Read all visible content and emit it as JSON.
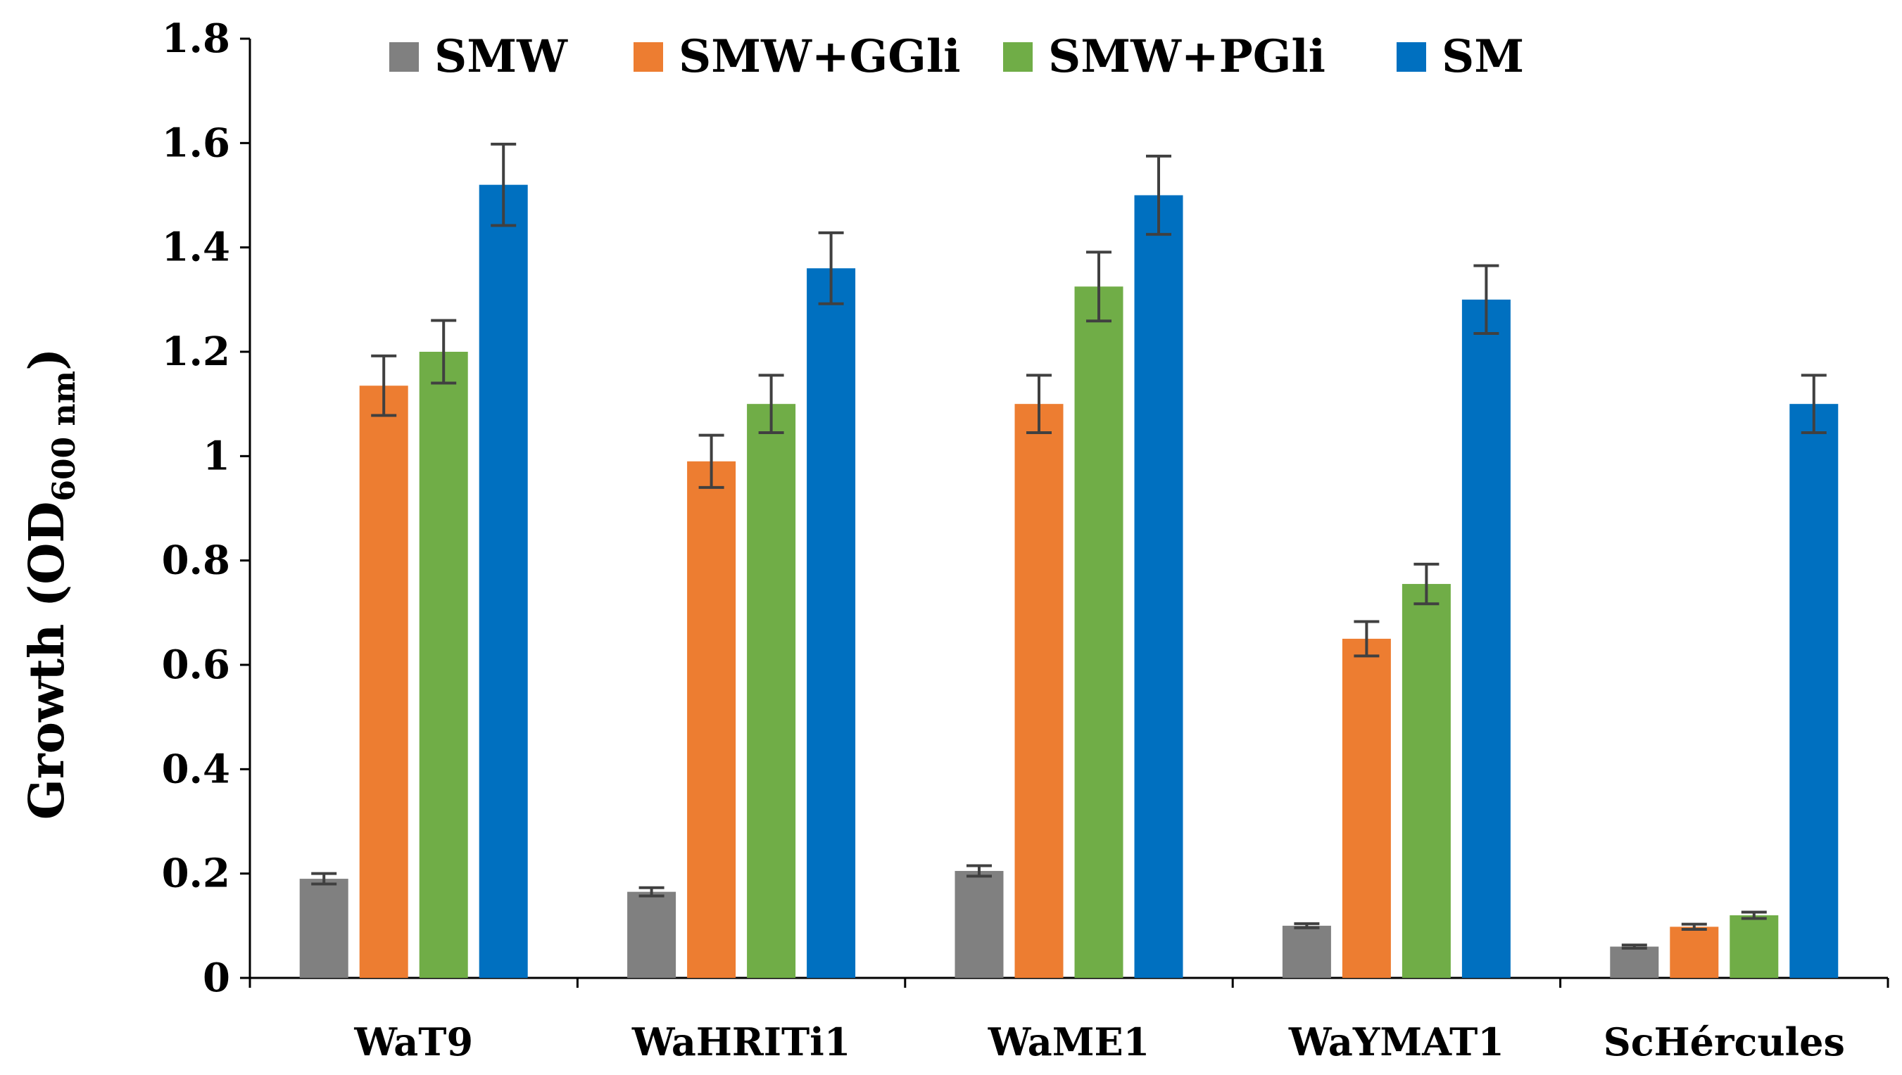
{
  "chart_data": {
    "type": "bar",
    "title": "",
    "xlabel": "",
    "ylabel": {
      "main": "Growth (OD",
      "subscript": "600 nm",
      "close": ")"
    },
    "ylim": [
      0,
      1.8
    ],
    "yticks": [
      0,
      0.2,
      0.4,
      0.6,
      0.8,
      1,
      1.2,
      1.4,
      1.6,
      1.8
    ],
    "ytick_labels": [
      "0",
      "0.2",
      "0.4",
      "0.6",
      "0.8",
      "1",
      "1.2",
      "1.4",
      "1.6",
      "1.8"
    ],
    "grid": false,
    "legend_position": "top",
    "categories": [
      "WaT9",
      "WaHRITi1",
      "WaME1",
      "WaYMAT1",
      "ScHércules"
    ],
    "series": [
      {
        "name": "SMW",
        "color": "#808080",
        "values": [
          0.19,
          0.165,
          0.205,
          0.1,
          0.06
        ],
        "errors": [
          0.01,
          0.008,
          0.01,
          0.004,
          0.003
        ]
      },
      {
        "name": "SMW+GGli",
        "color": "#ED7D31",
        "values": [
          1.135,
          0.99,
          1.1,
          0.65,
          0.098
        ],
        "errors": [
          0.057,
          0.05,
          0.055,
          0.033,
          0.005
        ]
      },
      {
        "name": "SMW+PGli",
        "color": "#70AD47",
        "values": [
          1.2,
          1.1,
          1.325,
          0.755,
          0.12
        ],
        "errors": [
          0.06,
          0.055,
          0.066,
          0.038,
          0.006
        ]
      },
      {
        "name": "SM",
        "color": "#0070C0",
        "values": [
          1.52,
          1.36,
          1.5,
          1.3,
          1.1
        ],
        "errors": [
          0.078,
          0.068,
          0.075,
          0.065,
          0.055
        ]
      }
    ],
    "error_bar_color": "#404040",
    "axis_color": "#000000"
  }
}
